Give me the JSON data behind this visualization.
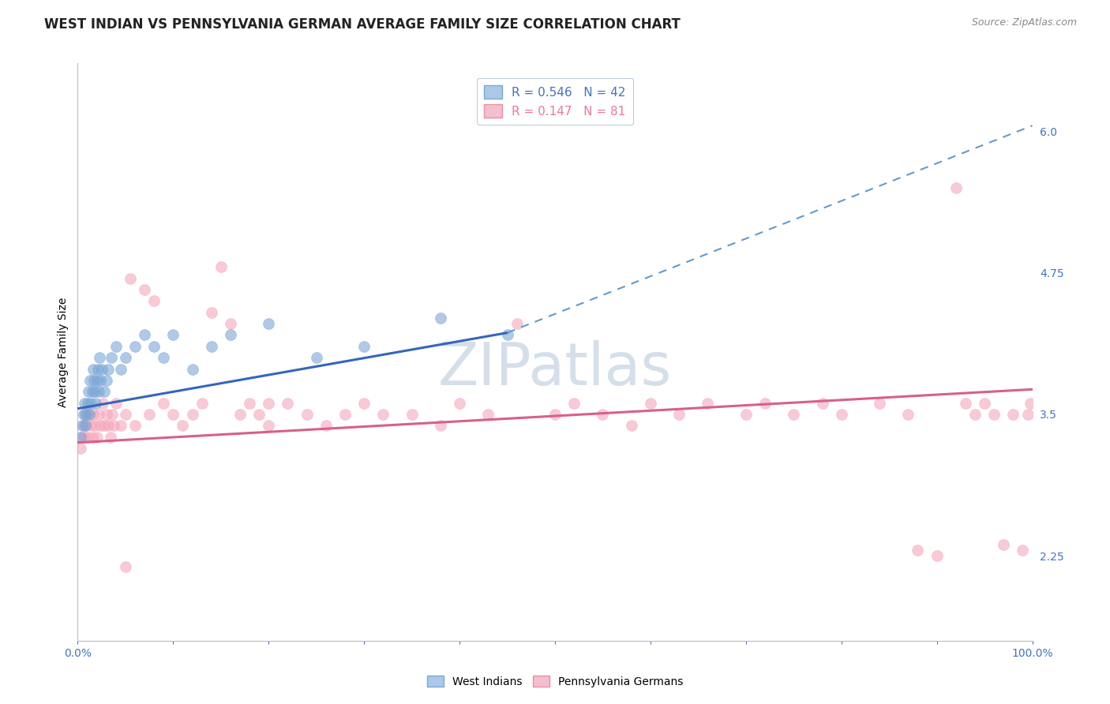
{
  "title": "WEST INDIAN VS PENNSYLVANIA GERMAN AVERAGE FAMILY SIZE CORRELATION CHART",
  "source": "Source: ZipAtlas.com",
  "ylabel": "Average Family Size",
  "xlim": [
    0,
    100
  ],
  "ylim": [
    1.5,
    6.6
  ],
  "yticks_right": [
    2.25,
    3.5,
    4.75,
    6.0
  ],
  "legend_entries": [
    {
      "label": "R = 0.546   N = 42",
      "color": "#4472c4"
    },
    {
      "label": "R = 0.147   N = 81",
      "color": "#e87a9c"
    }
  ],
  "west_indians": {
    "color": "#7aa6d6",
    "alpha": 0.6,
    "marker_size": 100,
    "x": [
      0.3,
      0.5,
      0.6,
      0.7,
      0.8,
      0.9,
      1.0,
      1.1,
      1.2,
      1.3,
      1.4,
      1.5,
      1.6,
      1.7,
      1.8,
      1.9,
      2.0,
      2.1,
      2.2,
      2.3,
      2.4,
      2.5,
      2.8,
      3.0,
      3.2,
      3.5,
      4.0,
      4.5,
      5.0,
      6.0,
      7.0,
      8.0,
      9.0,
      10.0,
      12.0,
      14.0,
      16.0,
      20.0,
      25.0,
      30.0,
      38.0,
      45.0
    ],
    "y": [
      3.3,
      3.4,
      3.5,
      3.6,
      3.4,
      3.5,
      3.6,
      3.7,
      3.5,
      3.8,
      3.6,
      3.7,
      3.9,
      3.8,
      3.7,
      3.6,
      3.8,
      3.9,
      3.7,
      4.0,
      3.8,
      3.9,
      3.7,
      3.8,
      3.9,
      4.0,
      4.1,
      3.9,
      4.0,
      4.1,
      4.2,
      4.1,
      4.0,
      4.2,
      3.9,
      4.1,
      4.2,
      4.3,
      4.0,
      4.1,
      4.35,
      4.2
    ]
  },
  "penn_germans": {
    "color": "#f4a7bc",
    "alpha": 0.6,
    "marker_size": 100,
    "x": [
      0.3,
      0.5,
      0.6,
      0.7,
      0.8,
      0.9,
      1.0,
      1.2,
      1.4,
      1.5,
      1.6,
      1.8,
      2.0,
      2.2,
      2.4,
      2.6,
      2.8,
      3.0,
      3.2,
      3.4,
      3.6,
      3.8,
      4.0,
      4.5,
      5.0,
      5.5,
      6.0,
      7.0,
      7.5,
      8.0,
      9.0,
      10.0,
      11.0,
      12.0,
      13.0,
      14.0,
      15.0,
      16.0,
      17.0,
      18.0,
      19.0,
      20.0,
      22.0,
      24.0,
      26.0,
      28.0,
      30.0,
      32.0,
      35.0,
      38.0,
      40.0,
      43.0,
      46.0,
      50.0,
      52.0,
      55.0,
      58.0,
      60.0,
      63.0,
      66.0,
      70.0,
      72.0,
      75.0,
      78.0,
      80.0,
      84.0,
      87.0,
      88.0,
      90.0,
      92.0,
      93.0,
      94.0,
      95.0,
      96.0,
      97.0,
      98.0,
      99.0,
      99.5,
      99.8,
      5.0,
      20.0
    ],
    "y": [
      3.2,
      3.3,
      3.4,
      3.3,
      3.5,
      3.4,
      3.3,
      3.5,
      3.4,
      3.3,
      3.5,
      3.4,
      3.3,
      3.5,
      3.4,
      3.6,
      3.4,
      3.5,
      3.4,
      3.3,
      3.5,
      3.4,
      3.6,
      3.4,
      3.5,
      4.7,
      3.4,
      4.6,
      3.5,
      4.5,
      3.6,
      3.5,
      3.4,
      3.5,
      3.6,
      4.4,
      4.8,
      4.3,
      3.5,
      3.6,
      3.5,
      3.4,
      3.6,
      3.5,
      3.4,
      3.5,
      3.6,
      3.5,
      3.5,
      3.4,
      3.6,
      3.5,
      4.3,
      3.5,
      3.6,
      3.5,
      3.4,
      3.6,
      3.5,
      3.6,
      3.5,
      3.6,
      3.5,
      3.6,
      3.5,
      3.6,
      3.5,
      2.3,
      2.25,
      5.5,
      3.6,
      3.5,
      3.6,
      3.5,
      2.35,
      3.5,
      2.3,
      3.5,
      3.6,
      2.15,
      3.6
    ]
  },
  "blue_trend": {
    "x_start": 0,
    "x_end": 45,
    "y_start": 3.55,
    "y_end": 4.22,
    "color": "#3466bb",
    "linewidth": 2.2
  },
  "blue_dashed": {
    "x_start": 45,
    "x_end": 100,
    "y_start": 4.22,
    "y_end": 6.05,
    "color": "#6699cc",
    "linewidth": 1.5,
    "linestyle": "--"
  },
  "pink_trend": {
    "x_start": 0,
    "x_end": 100,
    "y_start": 3.25,
    "y_end": 3.72,
    "color": "#d95f8a",
    "linewidth": 2.2
  },
  "watermark": "ZIPatlas",
  "watermark_color": "#d0dce8",
  "background_color": "#ffffff",
  "grid_color": "#e0e8f0",
  "title_fontsize": 12,
  "axis_label_fontsize": 10,
  "tick_fontsize": 10,
  "legend_fontsize": 11
}
